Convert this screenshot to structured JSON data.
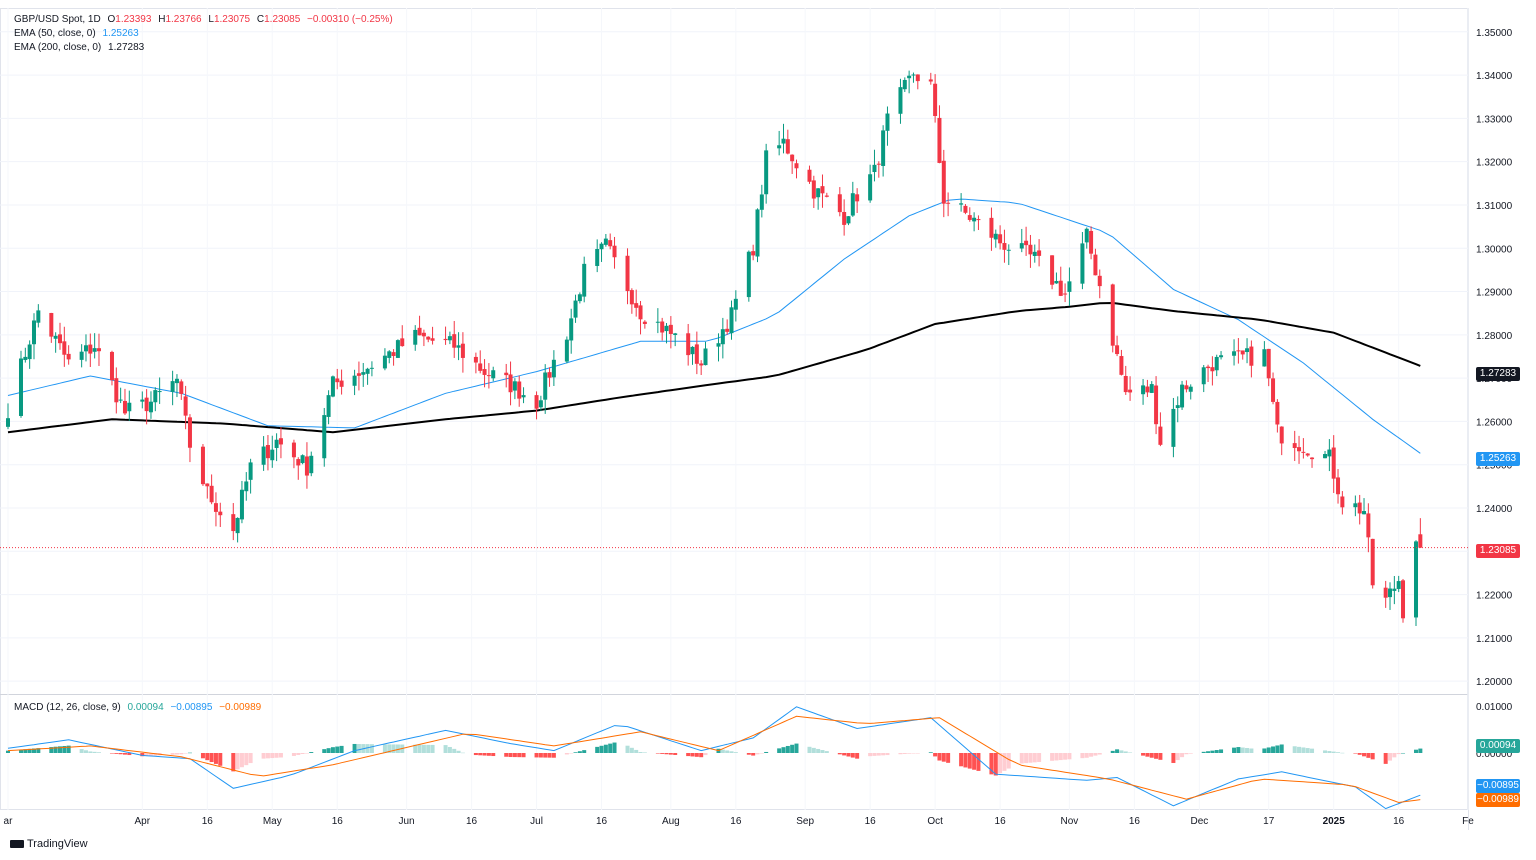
{
  "header": {
    "symbol": "GBP/USD Spot, 1D",
    "o_label": "O",
    "o_value": "1.23393",
    "h_label": "H",
    "h_value": "1.23766",
    "l_label": "L",
    "l_value": "1.23075",
    "c_label": "C",
    "c_value": "1.23085",
    "change": "−0.00310 (−0.25%)",
    "ema50_label": "EMA (50, close, 0)",
    "ema50_value": "1.25263",
    "ema200_label": "EMA (200, close, 0)",
    "ema200_value": "1.27283",
    "macd_label": "MACD (12, 26, close, 9)",
    "macd_hist_value": "0.00094",
    "macd_value": "−0.00895",
    "macd_signal_value": "−0.00989"
  },
  "badges": {
    "ema200": "1.27283",
    "ema50": "1.25263",
    "last": "1.23085",
    "macd_hist": "0.00094",
    "macd": "−0.00895",
    "signal": "−0.00989"
  },
  "brand": "TradingView",
  "colors": {
    "up": "#089981",
    "down": "#f23645",
    "ema50": "#2196f3",
    "ema200": "#000000",
    "macd": "#2196f3",
    "signal": "#ff6d00",
    "hist_up_strong": "#26a69a",
    "hist_up_weak": "#b2dfdb",
    "hist_down_strong": "#ff5252",
    "hist_down_weak": "#ffcdd2"
  },
  "chart_data": [
    {
      "type": "candlestick",
      "title": "GBP/USD Spot, 1D",
      "price_ticks": [
        "1.35000",
        "1.34000",
        "1.33000",
        "1.32000",
        "1.31000",
        "1.30000",
        "1.29000",
        "1.28000",
        "1.27000",
        "1.26000",
        "1.25000",
        "1.24000",
        "1.23000",
        "1.22000",
        "1.21000",
        "1.20000"
      ],
      "price_tick_values": [
        1.35,
        1.34,
        1.33,
        1.32,
        1.31,
        1.3,
        1.29,
        1.28,
        1.27,
        1.26,
        1.25,
        1.24,
        1.23,
        1.22,
        1.21,
        1.2
      ],
      "ylim": [
        1.1975,
        1.3555
      ],
      "x_ticks": [
        "ar",
        "Apr",
        "16",
        "May",
        "16",
        "Jun",
        "16",
        "Jul",
        "16",
        "Aug",
        "16",
        "Sep",
        "16",
        "Oct",
        "16",
        "Nov",
        "16",
        "Dec",
        "17",
        "2025",
        "16",
        "Fe"
      ],
      "x_tick_dates": [
        "2024-03-01",
        "2024-04-01",
        "2024-04-16",
        "2024-05-01",
        "2024-05-16",
        "2024-06-01",
        "2024-06-16",
        "2024-07-01",
        "2024-07-16",
        "2024-08-01",
        "2024-08-16",
        "2024-09-01",
        "2024-09-16",
        "2024-10-01",
        "2024-10-16",
        "2024-11-01",
        "2024-11-16",
        "2024-12-01",
        "2024-12-17",
        "2025-01-01",
        "2025-01-16",
        "2025-02-01"
      ],
      "start_date": "2024-03-01",
      "end_date": "2025-01-21",
      "close_anchors": [
        [
          "2024-03-01",
          1.263
        ],
        [
          "2024-03-08",
          1.2855
        ],
        [
          "2024-03-15",
          1.2735
        ],
        [
          "2024-03-21",
          1.2775
        ],
        [
          "2024-03-28",
          1.262
        ],
        [
          "2024-04-03",
          1.2645
        ],
        [
          "2024-04-09",
          1.2695
        ],
        [
          "2024-04-12",
          1.2545
        ],
        [
          "2024-04-16",
          1.2435
        ],
        [
          "2024-04-22",
          1.235
        ],
        [
          "2024-04-26",
          1.2495
        ],
        [
          "2024-05-02",
          1.2555
        ],
        [
          "2024-05-09",
          1.2495
        ],
        [
          "2024-05-15",
          1.2685
        ],
        [
          "2024-05-23",
          1.2725
        ],
        [
          "2024-06-03",
          1.2795
        ],
        [
          "2024-06-12",
          1.2775
        ],
        [
          "2024-06-19",
          1.2715
        ],
        [
          "2024-06-25",
          1.2685
        ],
        [
          "2024-07-01",
          1.2645
        ],
        [
          "2024-07-08",
          1.2805
        ],
        [
          "2024-07-12",
          1.2945
        ],
        [
          "2024-07-17",
          1.3005
        ],
        [
          "2024-07-25",
          1.2855
        ],
        [
          "2024-08-02",
          1.2795
        ],
        [
          "2024-08-08",
          1.2735
        ],
        [
          "2024-08-15",
          1.2845
        ],
        [
          "2024-08-20",
          1.3005
        ],
        [
          "2024-08-23",
          1.3205
        ],
        [
          "2024-08-27",
          1.3245
        ],
        [
          "2024-09-03",
          1.3135
        ],
        [
          "2024-09-10",
          1.3075
        ],
        [
          "2024-09-13",
          1.3125
        ],
        [
          "2024-09-17",
          1.3175
        ],
        [
          "2024-09-20",
          1.3295
        ],
        [
          "2024-09-26",
          1.3405
        ],
        [
          "2024-09-30",
          1.3375
        ],
        [
          "2024-10-03",
          1.3115
        ],
        [
          "2024-10-10",
          1.3065
        ],
        [
          "2024-10-16",
          1.3015
        ],
        [
          "2024-10-24",
          1.2975
        ],
        [
          "2024-10-31",
          1.2895
        ],
        [
          "2024-11-05",
          1.3025
        ],
        [
          "2024-11-08",
          1.2915
        ],
        [
          "2024-11-14",
          1.2665
        ],
        [
          "2024-11-20",
          1.2675
        ],
        [
          "2024-11-22",
          1.2555
        ],
        [
          "2024-11-27",
          1.2675
        ],
        [
          "2024-12-04",
          1.2735
        ],
        [
          "2024-12-10",
          1.2745
        ],
        [
          "2024-12-16",
          1.2755
        ],
        [
          "2024-12-19",
          1.2575
        ],
        [
          "2024-12-23",
          1.2555
        ],
        [
          "2024-12-31",
          1.2515
        ],
        [
          "2025-01-03",
          1.2415
        ],
        [
          "2025-01-08",
          1.2395
        ],
        [
          "2025-01-10",
          1.2225
        ],
        [
          "2025-01-13",
          1.2185
        ],
        [
          "2025-01-16",
          1.2235
        ],
        [
          "2025-01-17",
          1.2165
        ],
        [
          "2025-01-20",
          1.2335
        ],
        [
          "2025-01-21",
          1.23085
        ]
      ],
      "last_candle": {
        "open": 1.23393,
        "high": 1.23766,
        "low": 1.23075,
        "close": 1.23085
      },
      "ema50_anchors": [
        [
          "2024-03-01",
          1.266
        ],
        [
          "2024-03-20",
          1.2705
        ],
        [
          "2024-04-10",
          1.2665
        ],
        [
          "2024-04-30",
          1.259
        ],
        [
          "2024-05-20",
          1.2585
        ],
        [
          "2024-06-10",
          1.2665
        ],
        [
          "2024-07-01",
          1.2715
        ],
        [
          "2024-07-25",
          1.2785
        ],
        [
          "2024-08-10",
          1.2785
        ],
        [
          "2024-08-25",
          1.2845
        ],
        [
          "2024-09-10",
          1.2975
        ],
        [
          "2024-09-25",
          1.3075
        ],
        [
          "2024-10-05",
          1.3115
        ],
        [
          "2024-10-20",
          1.3105
        ],
        [
          "2024-11-01",
          1.3065
        ],
        [
          "2024-11-10",
          1.3035
        ],
        [
          "2024-11-25",
          1.2905
        ],
        [
          "2024-12-10",
          1.2835
        ],
        [
          "2024-12-25",
          1.2735
        ],
        [
          "2025-01-10",
          1.2605
        ],
        [
          "2025-01-21",
          1.25263
        ]
      ],
      "ema200_anchors": [
        [
          "2024-03-01",
          1.2575
        ],
        [
          "2024-03-25",
          1.2605
        ],
        [
          "2024-04-20",
          1.2595
        ],
        [
          "2024-05-15",
          1.2575
        ],
        [
          "2024-06-10",
          1.2605
        ],
        [
          "2024-07-01",
          1.2625
        ],
        [
          "2024-07-20",
          1.2655
        ],
        [
          "2024-08-10",
          1.2685
        ],
        [
          "2024-08-25",
          1.2705
        ],
        [
          "2024-09-15",
          1.2765
        ],
        [
          "2024-10-01",
          1.2825
        ],
        [
          "2024-10-20",
          1.2855
        ],
        [
          "2024-11-01",
          1.2865
        ],
        [
          "2024-11-10",
          1.2875
        ],
        [
          "2024-11-25",
          1.2855
        ],
        [
          "2024-12-15",
          1.2835
        ],
        [
          "2025-01-01",
          1.2805
        ],
        [
          "2025-01-21",
          1.27283
        ]
      ]
    },
    {
      "type": "macd",
      "title": "MACD (12, 26, close, 9)",
      "ticks": [
        "0.01000",
        "0.00000",
        "-0.01000"
      ],
      "tick_values": [
        0.01,
        0.0,
        -0.01
      ],
      "ylim": [
        -0.0121,
        0.0121
      ],
      "macd_anchors": [
        [
          "2024-03-01",
          0.001
        ],
        [
          "2024-03-15",
          0.0028
        ],
        [
          "2024-04-01",
          -0.0005
        ],
        [
          "2024-04-12",
          -0.0012
        ],
        [
          "2024-04-22",
          -0.0075
        ],
        [
          "2024-05-05",
          -0.0048
        ],
        [
          "2024-05-20",
          0.0005
        ],
        [
          "2024-06-10",
          0.0048
        ],
        [
          "2024-06-25",
          0.002
        ],
        [
          "2024-07-05",
          0.0005
        ],
        [
          "2024-07-20",
          0.0062
        ],
        [
          "2024-08-08",
          0.0005
        ],
        [
          "2024-08-20",
          0.0032
        ],
        [
          "2024-08-30",
          0.0098
        ],
        [
          "2024-09-13",
          0.0052
        ],
        [
          "2024-09-30",
          0.0075
        ],
        [
          "2024-10-15",
          -0.0045
        ],
        [
          "2024-11-05",
          -0.0058
        ],
        [
          "2024-11-12",
          -0.0052
        ],
        [
          "2024-11-25",
          -0.0112
        ],
        [
          "2024-12-10",
          -0.0055
        ],
        [
          "2024-12-20",
          -0.004
        ],
        [
          "2025-01-06",
          -0.0072
        ],
        [
          "2025-01-13",
          -0.0118
        ],
        [
          "2025-01-21",
          -0.00895
        ]
      ],
      "signal_anchors": [
        [
          "2024-03-01",
          0.0005
        ],
        [
          "2024-03-20",
          0.0015
        ],
        [
          "2024-04-10",
          -0.0008
        ],
        [
          "2024-04-28",
          -0.005
        ],
        [
          "2024-05-15",
          -0.0025
        ],
        [
          "2024-06-15",
          0.0042
        ],
        [
          "2024-07-05",
          0.0015
        ],
        [
          "2024-07-25",
          0.0045
        ],
        [
          "2024-08-12",
          0.0005
        ],
        [
          "2024-08-30",
          0.0078
        ],
        [
          "2024-09-15",
          0.0062
        ],
        [
          "2024-10-02",
          0.0075
        ],
        [
          "2024-10-20",
          -0.0025
        ],
        [
          "2024-11-10",
          -0.0055
        ],
        [
          "2024-11-28",
          -0.0098
        ],
        [
          "2024-12-15",
          -0.0055
        ],
        [
          "2025-01-05",
          -0.0068
        ],
        [
          "2025-01-16",
          -0.0105
        ],
        [
          "2025-01-21",
          -0.00989
        ]
      ]
    }
  ]
}
